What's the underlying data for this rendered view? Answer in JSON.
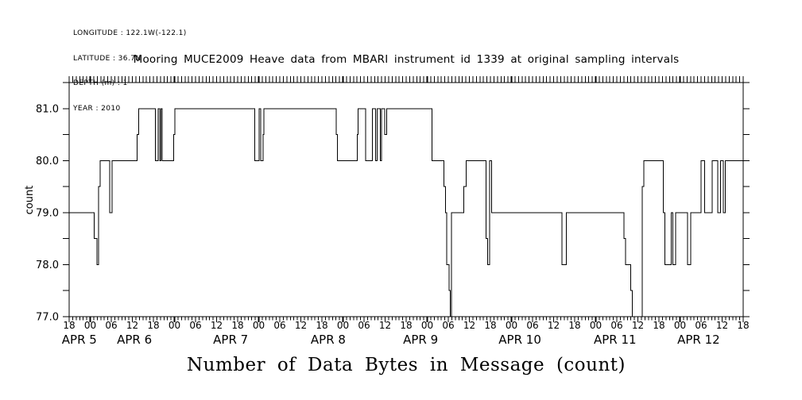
{
  "meta": {
    "lines": [
      "LONGITUDE : 122.1W(-122.1)",
      "LATITUDE : 36.7N",
      "DEPTH (m) : 1",
      "YEAR : 2010"
    ]
  },
  "title": "Mooring MUCE2009 Heave data from MBARI instrument id 1339 at original sampling intervals",
  "bottom_title": "Number of Data Bytes in Message (count)",
  "colors": {
    "ink": "#000000",
    "background": "#ffffff"
  },
  "chart_data": {
    "type": "line",
    "line_style": "step-after",
    "title": "Mooring MUCE2009 Heave data from MBARI instrument id 1339 at original sampling intervals",
    "xlabel": "Number of Data Bytes in Message (count)",
    "ylabel": "count",
    "grid": false,
    "legend": "none",
    "x_unit": "hours since APR 4 18:00 (2010)",
    "xlim": [
      0,
      192
    ],
    "ylim": [
      77.0,
      81.5
    ],
    "ytick_major_values": [
      81.0,
      80.0,
      79.0,
      78.0,
      77.0
    ],
    "ytick_labels": [
      "81.0",
      "80.0",
      "79.0",
      "78.0",
      "77.0"
    ],
    "ytick_minor_step": 0.5,
    "xtick_hour_step": 1,
    "xtick_label_step": 6,
    "xtick_labels": [
      "18",
      "00",
      "06",
      "12",
      "18",
      "00",
      "06",
      "12",
      "18",
      "00",
      "06",
      "12",
      "18",
      "00",
      "06",
      "12",
      "18",
      "00",
      "06",
      "12",
      "18",
      "00",
      "06",
      "12",
      "18",
      "00",
      "06",
      "12",
      "18",
      "00",
      "06",
      "12",
      "18"
    ],
    "midnight_hours": [
      6,
      30,
      54,
      78,
      102,
      126,
      150,
      174
    ],
    "date_labels": [
      {
        "label": "APR 5",
        "t": 2.9
      },
      {
        "label": "APR 6",
        "t": 18.6
      },
      {
        "label": "APR 7",
        "t": 46.0
      },
      {
        "label": "APR 8",
        "t": 73.8
      },
      {
        "label": "APR 9",
        "t": 100.1
      },
      {
        "label": "APR 10",
        "t": 128.4
      },
      {
        "label": "APR 11",
        "t": 155.5
      },
      {
        "label": "APR 12",
        "t": 179.3
      }
    ],
    "steps_format": "[hour_offset, count] value holds until next point",
    "steps": [
      [
        0,
        79.0
      ],
      [
        7.1,
        78.5
      ],
      [
        7.9,
        78.0
      ],
      [
        8.4,
        79.5
      ],
      [
        8.8,
        80.0
      ],
      [
        11.5,
        79.0
      ],
      [
        12.2,
        80.0
      ],
      [
        19.4,
        80.5
      ],
      [
        19.8,
        81.0
      ],
      [
        24.6,
        80.0
      ],
      [
        25.4,
        81.0
      ],
      [
        25.8,
        80.0
      ],
      [
        26.2,
        81.0
      ],
      [
        26.5,
        80.0
      ],
      [
        29.8,
        80.5
      ],
      [
        30.1,
        81.0
      ],
      [
        52.9,
        80.0
      ],
      [
        54.1,
        81.0
      ],
      [
        54.6,
        80.0
      ],
      [
        55.2,
        80.5
      ],
      [
        55.5,
        81.0
      ],
      [
        76.1,
        80.5
      ],
      [
        76.4,
        80.0
      ],
      [
        82.1,
        80.5
      ],
      [
        82.3,
        81.0
      ],
      [
        84.5,
        80.0
      ],
      [
        86.4,
        81.0
      ],
      [
        87.3,
        80.0
      ],
      [
        87.7,
        81.0
      ],
      [
        88.6,
        80.0
      ],
      [
        89.0,
        81.0
      ],
      [
        89.9,
        80.5
      ],
      [
        90.5,
        81.0
      ],
      [
        103.4,
        80.0
      ],
      [
        106.8,
        79.5
      ],
      [
        107.2,
        79.0
      ],
      [
        107.5,
        78.0
      ],
      [
        108.2,
        77.5
      ],
      [
        108.6,
        77.0
      ],
      [
        108.9,
        79.0
      ],
      [
        112.4,
        79.5
      ],
      [
        113.1,
        80.0
      ],
      [
        118.8,
        78.5
      ],
      [
        119.2,
        78.0
      ],
      [
        119.8,
        80.0
      ],
      [
        120.3,
        79.0
      ],
      [
        140.4,
        78.0
      ],
      [
        141.6,
        79.0
      ],
      [
        158.0,
        78.5
      ],
      [
        158.5,
        78.0
      ],
      [
        160.0,
        77.5
      ],
      [
        160.4,
        77.0
      ],
      [
        163.3,
        79.5
      ],
      [
        163.7,
        80.0
      ],
      [
        169.3,
        79.0
      ],
      [
        169.7,
        78.0
      ],
      [
        171.5,
        79.0
      ],
      [
        172.0,
        78.0
      ],
      [
        172.7,
        79.0
      ],
      [
        176.2,
        78.0
      ],
      [
        177.1,
        79.0
      ],
      [
        180.0,
        80.0
      ],
      [
        181.0,
        79.0
      ],
      [
        183.2,
        80.0
      ],
      [
        184.7,
        79.0
      ],
      [
        185.5,
        80.0
      ],
      [
        186.3,
        79.0
      ],
      [
        186.9,
        80.0
      ],
      [
        192,
        80.0
      ]
    ]
  }
}
